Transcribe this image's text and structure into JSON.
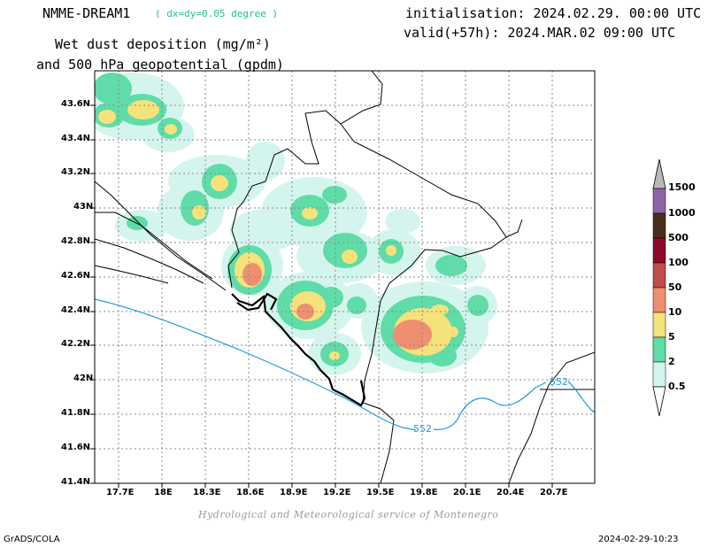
{
  "header": {
    "model": "NMME-DREAM1",
    "resolution": "( dx=dy=0.05 degree )",
    "field_line1": "Wet dust deposition (mg/m²)",
    "field_line2": "and 500 hPa geopotential (gpdm)",
    "init": "initialisation: 2024.02.29. 00:00 UTC",
    "valid": "valid(+57h): 2024.MAR.02 09:00 UTC"
  },
  "axes": {
    "lon_ticks": [
      "17.7E",
      "18E",
      "18.3E",
      "18.6E",
      "18.9E",
      "19.2E",
      "19.5E",
      "19.8E",
      "20.1E",
      "20.4E",
      "20.7E"
    ],
    "lat_ticks": [
      "43.6N",
      "43.4N",
      "43.2N",
      "43N",
      "42.8N",
      "42.6N",
      "42.4N",
      "42.2N",
      "42N",
      "41.8N",
      "41.6N",
      "41.4N"
    ]
  },
  "contour": {
    "label_a": "552",
    "label_b": "552",
    "color": "#1e9be0"
  },
  "legend": {
    "levels": [
      "0.5",
      "2",
      "5",
      "10",
      "50",
      "100",
      "500",
      "1000",
      "1500"
    ],
    "colors": [
      "#d4f5ee",
      "#5fdca7",
      "#f6e27a",
      "#ee8f6f",
      "#be4e47",
      "#8d0a2a",
      "#4a2e1c",
      "#8e63a8",
      "#b9b9b9"
    ]
  },
  "footer": {
    "credit": "Hydrological and Meteorological service of Montenegro",
    "left": "GrADS/COLA",
    "right": "2024-02-29-10:23"
  }
}
